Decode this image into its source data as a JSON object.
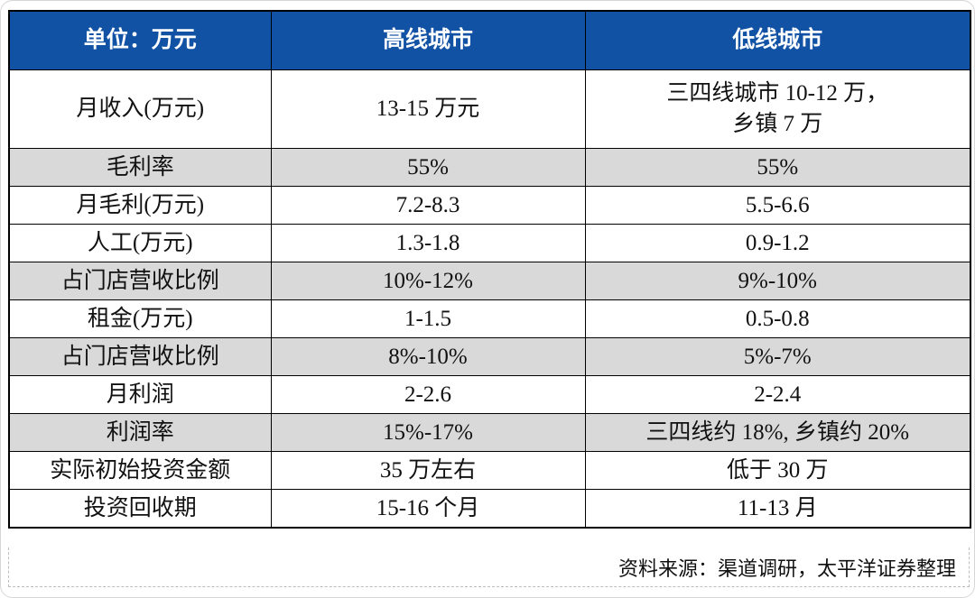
{
  "table": {
    "header": [
      "单位：万元",
      "高线城市",
      "低线城市"
    ],
    "rows": [
      {
        "label": "月收入(万元)",
        "high": "13-15 万元",
        "low": "三四线城市 10-12 万，\n乡镇 7 万",
        "shaded": false,
        "muted": false
      },
      {
        "label": "毛利率",
        "high": "55%",
        "low": "55%",
        "shaded": true,
        "muted": true
      },
      {
        "label": "月毛利(万元)",
        "high": "7.2-8.3",
        "low": "5.5-6.6",
        "shaded": false,
        "muted": false
      },
      {
        "label": "人工(万元)",
        "high": "1.3-1.8",
        "low": "0.9-1.2",
        "shaded": false,
        "muted": false
      },
      {
        "label": "占门店营收比例",
        "high": "10%-12%",
        "low": "9%-10%",
        "shaded": true,
        "muted": false
      },
      {
        "label": "租金(万元)",
        "high": "1-1.5",
        "low": "0.5-0.8",
        "shaded": false,
        "muted": false
      },
      {
        "label": "占门店营收比例",
        "high": "8%-10%",
        "low": "5%-7%",
        "shaded": true,
        "muted": false
      },
      {
        "label": "月利润",
        "high": "2-2.6",
        "low": "2-2.4",
        "shaded": false,
        "muted": false
      },
      {
        "label": "利润率",
        "high": "15%-17%",
        "low": "三四线约 18%, 乡镇约 20%",
        "shaded": true,
        "muted": true
      },
      {
        "label": "实际初始投资金额",
        "high": "35 万左右",
        "low": "低于 30 万",
        "shaded": false,
        "muted": false
      },
      {
        "label": "投资回收期",
        "high": "15-16 个月",
        "low": "11-13 月",
        "shaded": false,
        "muted": false
      }
    ],
    "source": "资料来源：渠道调研，太平洋证券整理"
  },
  "colors": {
    "header_bg": "#1252A5",
    "header_text": "#FFFFFF",
    "shaded_row_bg": "#D9D9D9",
    "muted_label_text": "#6F7480",
    "table_border": "#000000",
    "dashed_border": "#BDBDBD"
  },
  "chart_data": {
    "type": "table",
    "title": "",
    "columns": [
      "单位：万元",
      "高线城市",
      "低线城市"
    ],
    "rows": [
      [
        "月收入(万元)",
        "13-15 万元",
        "三四线城市 10-12 万，乡镇 7 万"
      ],
      [
        "毛利率",
        "55%",
        "55%"
      ],
      [
        "月毛利(万元)",
        "7.2-8.3",
        "5.5-6.6"
      ],
      [
        "人工(万元)",
        "1.3-1.8",
        "0.9-1.2"
      ],
      [
        "占门店营收比例",
        "10%-12%",
        "9%-10%"
      ],
      [
        "租金(万元)",
        "1-1.5",
        "0.5-0.8"
      ],
      [
        "占门店营收比例",
        "8%-10%",
        "5%-7%"
      ],
      [
        "月利润",
        "2-2.6",
        "2-2.4"
      ],
      [
        "利润率",
        "15%-17%",
        "三四线约 18%, 乡镇约 20%"
      ],
      [
        "实际初始投资金额",
        "35 万左右",
        "低于 30 万"
      ],
      [
        "投资回收期",
        "15-16 个月",
        "11-13 月"
      ]
    ],
    "source_note": "资料来源：渠道调研，太平洋证券整理"
  }
}
